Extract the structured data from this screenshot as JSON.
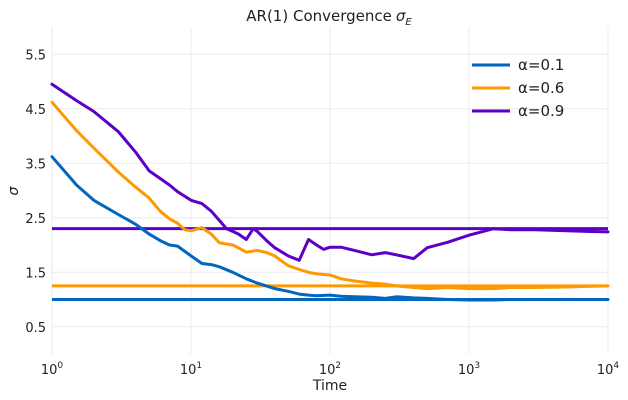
{
  "chart_data": {
    "type": "line",
    "title": "AR(1) Convergence",
    "title_symbol": "σ",
    "title_subscript": "E",
    "xlabel": "Time",
    "ylabel": "σ",
    "xscale": "log",
    "xlim": [
      1,
      10000
    ],
    "ylim": [
      0,
      6
    ],
    "x_ticks": [
      {
        "value": 1,
        "base": "10",
        "exp": "0"
      },
      {
        "value": 10,
        "base": "10",
        "exp": "1"
      },
      {
        "value": 100,
        "base": "10",
        "exp": "2"
      },
      {
        "value": 1000,
        "base": "10",
        "exp": "3"
      },
      {
        "value": 10000,
        "base": "10",
        "exp": "4"
      }
    ],
    "y_ticks": [
      {
        "value": 0.5,
        "label": "0.5"
      },
      {
        "value": 1.5,
        "label": "1.5"
      },
      {
        "value": 2.5,
        "label": "2.5"
      },
      {
        "value": 3.5,
        "label": "3.5"
      },
      {
        "value": 4.5,
        "label": "4.5"
      },
      {
        "value": 5.5,
        "label": "5.5"
      }
    ],
    "grid": true,
    "legend_position": "top-right",
    "series": [
      {
        "name": "α=0.1",
        "color": "#0066c0",
        "true_value": 1.0,
        "x": [
          1,
          1.5,
          2,
          3,
          4,
          5,
          6,
          7,
          8,
          10,
          12,
          14,
          16,
          20,
          25,
          30,
          40,
          50,
          60,
          70,
          80,
          100,
          120,
          150,
          200,
          250,
          300,
          400,
          500,
          700,
          1000,
          1500,
          2000,
          3000,
          5000,
          7000,
          10000
        ],
        "values": [
          3.62,
          3.1,
          2.82,
          2.56,
          2.38,
          2.2,
          2.08,
          2.0,
          1.98,
          1.8,
          1.66,
          1.64,
          1.6,
          1.5,
          1.38,
          1.3,
          1.2,
          1.15,
          1.1,
          1.08,
          1.07,
          1.08,
          1.06,
          1.05,
          1.04,
          1.02,
          1.05,
          1.03,
          1.02,
          1.0,
          0.99,
          0.99,
          1.0,
          1.0,
          1.0,
          1.0,
          1.0
        ]
      },
      {
        "name": "α=0.6",
        "color": "#ff9900",
        "true_value": 1.25,
        "x": [
          1,
          1.5,
          2,
          3,
          4,
          5,
          6,
          7,
          8,
          9,
          10,
          12,
          14,
          16,
          20,
          25,
          30,
          35,
          40,
          50,
          60,
          70,
          80,
          100,
          120,
          150,
          200,
          250,
          300,
          400,
          500,
          700,
          1000,
          1500,
          2000,
          3000,
          5000,
          7000,
          10000
        ],
        "values": [
          4.62,
          4.1,
          3.78,
          3.34,
          3.06,
          2.86,
          2.62,
          2.48,
          2.4,
          2.28,
          2.26,
          2.32,
          2.2,
          2.04,
          2.0,
          1.87,
          1.9,
          1.86,
          1.8,
          1.62,
          1.55,
          1.5,
          1.47,
          1.45,
          1.38,
          1.34,
          1.3,
          1.28,
          1.25,
          1.22,
          1.2,
          1.22,
          1.2,
          1.2,
          1.22,
          1.22,
          1.23,
          1.24,
          1.25
        ]
      },
      {
        "name": "α=0.9",
        "color": "#5c00c8",
        "true_value": 2.3,
        "x": [
          1,
          1.5,
          2,
          3,
          4,
          5,
          6,
          7,
          8,
          10,
          12,
          14,
          16,
          18,
          20,
          22,
          25,
          28,
          30,
          35,
          40,
          50,
          60,
          70,
          80,
          90,
          100,
          120,
          150,
          200,
          250,
          300,
          400,
          500,
          700,
          1000,
          1500,
          2000,
          3000,
          5000,
          7000,
          10000
        ],
        "values": [
          4.95,
          4.65,
          4.45,
          4.08,
          3.7,
          3.36,
          3.22,
          3.1,
          2.98,
          2.82,
          2.76,
          2.62,
          2.45,
          2.3,
          2.25,
          2.2,
          2.1,
          2.3,
          2.25,
          2.08,
          1.95,
          1.8,
          1.72,
          2.1,
          2.0,
          1.92,
          1.96,
          1.96,
          1.9,
          1.82,
          1.86,
          1.82,
          1.75,
          1.95,
          2.05,
          2.18,
          2.3,
          2.28,
          2.28,
          2.26,
          2.25,
          2.24
        ]
      }
    ]
  }
}
